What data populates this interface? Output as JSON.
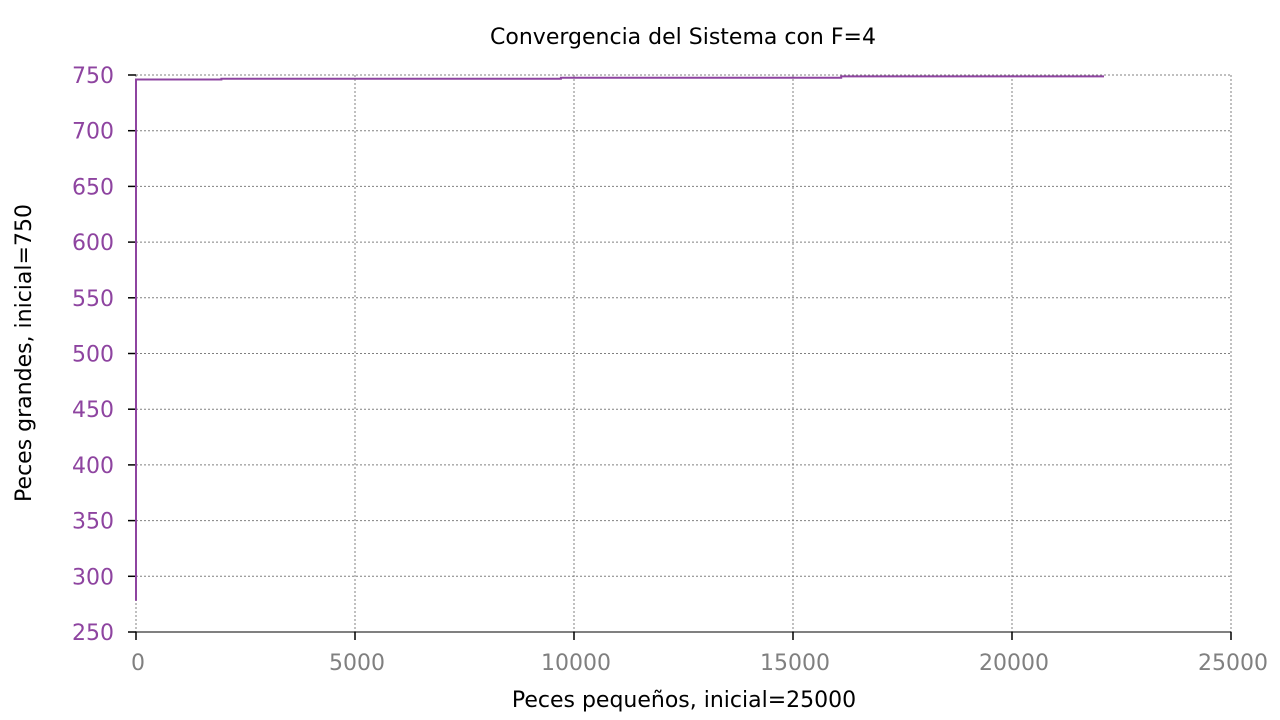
{
  "chart_data": {
    "type": "line",
    "title": "Convergencia del Sistema con F=4",
    "xlabel": "Peces pequeños, inicial=25000",
    "ylabel": "Peces grandes, inicial=750",
    "xlim": [
      0,
      25000
    ],
    "ylim": [
      250,
      750
    ],
    "xticks": [
      "0",
      "5000",
      "10000",
      "15000",
      "20000",
      "25000"
    ],
    "yticks": [
      "250",
      "300",
      "350",
      "400",
      "450",
      "500",
      "550",
      "600",
      "650",
      "700",
      "750"
    ],
    "grid": true,
    "colors": {
      "series": "#8e44a0",
      "ytick_text": "#8e44a0",
      "xtick_text": "#808080",
      "grid": "#808080",
      "axis": "#000000"
    },
    "series": [
      {
        "x": [
          0,
          0,
          1950,
          1950,
          9700,
          9700,
          16100,
          16100,
          22100
        ],
        "y": [
          278,
          746,
          746,
          746.6,
          746.6,
          747.6,
          747.6,
          748.7,
          748.7
        ]
      }
    ]
  }
}
